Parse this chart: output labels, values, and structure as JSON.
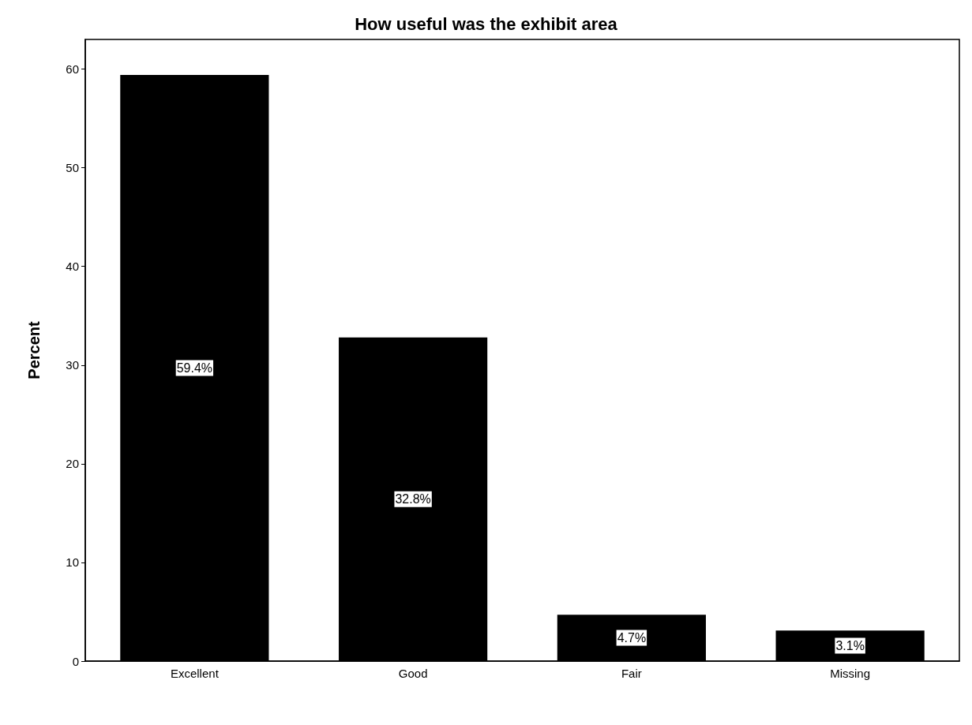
{
  "chart_data": {
    "type": "bar",
    "title": "How useful was the exhibit area",
    "ylabel": "Percent",
    "categories": [
      "Excellent",
      "Good",
      "Fair",
      "Missing"
    ],
    "values": [
      59.4,
      32.8,
      4.7,
      3.1
    ],
    "value_labels": [
      "59.4%",
      "32.8%",
      "4.7%",
      "3.1%"
    ],
    "color": "#000000",
    "ylim": [
      0,
      63
    ],
    "yticks": [
      0,
      10,
      20,
      30,
      40,
      50,
      60
    ],
    "grid": false
  }
}
